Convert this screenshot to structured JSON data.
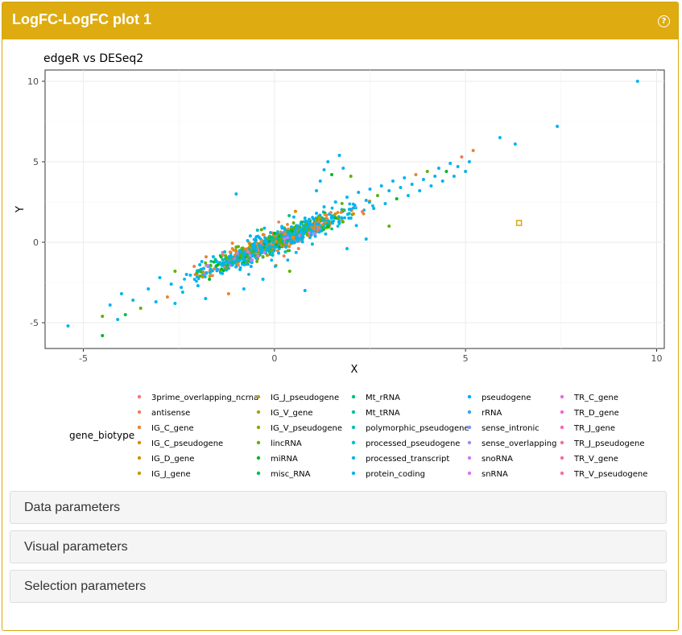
{
  "panel": {
    "title": "LogFC-LogFC plot 1"
  },
  "accordions": [
    "Data parameters",
    "Visual parameters",
    "Selection parameters"
  ],
  "colors": {
    "header": "#deac10",
    "selected_point": "#d4a810"
  },
  "chart_data": {
    "type": "scatter",
    "title": "edgeR vs DESeq2",
    "xlabel": "X",
    "ylabel": "Y",
    "xlim": [
      -6,
      10.2
    ],
    "ylim": [
      -6.6,
      10.7
    ],
    "xticks": [
      -5,
      0,
      5,
      10
    ],
    "yticks": [
      -5,
      0,
      5,
      10
    ],
    "grid": true,
    "legend": {
      "title": "gene_biotype",
      "placement": "bottom"
    },
    "series": [
      {
        "name": "3prime_overlapping_ncrna",
        "color": "#F8766D"
      },
      {
        "name": "antisense",
        "color": "#F27D52"
      },
      {
        "name": "IG_C_gene",
        "color": "#EA8331"
      },
      {
        "name": "IG_C_pseudogene",
        "color": "#E18A00"
      },
      {
        "name": "IG_D_gene",
        "color": "#D69100"
      },
      {
        "name": "IG_J_gene",
        "color": "#C99800"
      },
      {
        "name": "IG_J_pseudogene",
        "color": "#BB9D00"
      },
      {
        "name": "IG_V_gene",
        "color": "#A3A500"
      },
      {
        "name": "IG_V_pseudogene",
        "color": "#86AC00"
      },
      {
        "name": "lincRNA",
        "color": "#5BB300"
      },
      {
        "name": "miRNA",
        "color": "#00B81F"
      },
      {
        "name": "misc_RNA",
        "color": "#00BC56"
      },
      {
        "name": "Mt_rRNA",
        "color": "#00BF7D"
      },
      {
        "name": "Mt_tRNA",
        "color": "#00C19C"
      },
      {
        "name": "polymorphic_pseudogene",
        "color": "#00C0B8"
      },
      {
        "name": "processed_pseudogene",
        "color": "#00BDD0"
      },
      {
        "name": "processed_transcript",
        "color": "#00B8E5"
      },
      {
        "name": "protein_coding",
        "color": "#00B4F0"
      },
      {
        "name": "pseudogene",
        "color": "#00ACFC"
      },
      {
        "name": "rRNA",
        "color": "#35A2FF"
      },
      {
        "name": "sense_intronic",
        "color": "#7997FF"
      },
      {
        "name": "sense_overlapping",
        "color": "#A58AFF"
      },
      {
        "name": "snoRNA",
        "color": "#C77CFF"
      },
      {
        "name": "snRNA",
        "color": "#DF70F8"
      },
      {
        "name": "TR_C_gene",
        "color": "#EF67EB"
      },
      {
        "name": "TR_D_gene",
        "color": "#FB61D7"
      },
      {
        "name": "TR_J_gene",
        "color": "#FF62BC"
      },
      {
        "name": "TR_J_pseudogene",
        "color": "#FF689E"
      },
      {
        "name": "TR_V_gene",
        "color": "#FF6C91"
      },
      {
        "name": "TR_V_pseudogene",
        "color": "#FF6A98"
      }
    ],
    "points": [
      [
        -5.4,
        -5.2,
        17
      ],
      [
        -4.5,
        -5.8,
        10
      ],
      [
        -4.5,
        -4.6,
        9
      ],
      [
        -4.3,
        -3.9,
        17
      ],
      [
        -4.1,
        -4.8,
        17
      ],
      [
        -4.0,
        -3.2,
        17
      ],
      [
        -3.9,
        -4.5,
        11
      ],
      [
        -3.7,
        -3.6,
        17
      ],
      [
        -3.5,
        -4.1,
        9
      ],
      [
        -3.3,
        -2.9,
        17
      ],
      [
        -3.1,
        -3.7,
        17
      ],
      [
        -3.0,
        -2.2,
        17
      ],
      [
        -2.8,
        -3.4,
        2
      ],
      [
        -2.7,
        -2.6,
        17
      ],
      [
        -2.6,
        -1.8,
        9
      ],
      [
        -2.4,
        -3.1,
        17
      ],
      [
        -2.3,
        -2.0,
        17
      ],
      [
        -2.1,
        -1.5,
        1
      ],
      [
        -2.0,
        -2.7,
        17
      ],
      [
        -1.9,
        -1.2,
        17
      ],
      [
        -1.7,
        -2.3,
        10
      ],
      [
        -1.6,
        -0.9,
        17
      ],
      [
        -1.4,
        -1.9,
        17
      ],
      [
        -1.3,
        -0.6,
        14
      ],
      [
        -1.1,
        -1.4,
        17
      ],
      [
        -1.0,
        -0.3,
        9
      ],
      [
        -0.9,
        -1.7,
        17
      ],
      [
        -0.8,
        -0.8,
        17
      ],
      [
        -0.7,
        0.1,
        17
      ],
      [
        -0.6,
        -1.1,
        22
      ],
      [
        -0.5,
        -0.4,
        17
      ],
      [
        -0.4,
        0.3,
        17
      ],
      [
        -0.3,
        -0.9,
        9
      ],
      [
        -0.2,
        -0.1,
        17
      ],
      [
        -0.1,
        0.6,
        17
      ],
      [
        0.0,
        -0.5,
        17
      ],
      [
        0.1,
        0.2,
        12
      ],
      [
        0.2,
        0.9,
        17
      ],
      [
        0.3,
        -0.3,
        17
      ],
      [
        0.4,
        0.5,
        17
      ],
      [
        0.5,
        1.2,
        9
      ],
      [
        0.6,
        0.1,
        17
      ],
      [
        0.7,
        0.8,
        17
      ],
      [
        0.8,
        1.5,
        17
      ],
      [
        0.9,
        0.4,
        2
      ],
      [
        1.0,
        1.1,
        17
      ],
      [
        1.1,
        1.8,
        17
      ],
      [
        1.2,
        0.7,
        17
      ],
      [
        1.3,
        2.2,
        17
      ],
      [
        1.4,
        1.0,
        10
      ],
      [
        1.5,
        1.6,
        17
      ],
      [
        1.6,
        2.5,
        17
      ],
      [
        1.7,
        1.3,
        17
      ],
      [
        1.8,
        2.0,
        9
      ],
      [
        1.9,
        2.8,
        17
      ],
      [
        2.0,
        1.5,
        17
      ],
      [
        2.1,
        2.3,
        17
      ],
      [
        2.2,
        3.1,
        17
      ],
      [
        2.3,
        1.9,
        1
      ],
      [
        2.4,
        2.6,
        17
      ],
      [
        2.5,
        3.3,
        17
      ],
      [
        2.6,
        2.1,
        17
      ],
      [
        2.7,
        2.9,
        9
      ],
      [
        2.8,
        3.5,
        17
      ],
      [
        2.9,
        2.4,
        17
      ],
      [
        3.0,
        3.2,
        17
      ],
      [
        3.1,
        3.8,
        17
      ],
      [
        3.2,
        2.7,
        10
      ],
      [
        3.3,
        3.4,
        17
      ],
      [
        3.4,
        4.0,
        17
      ],
      [
        3.5,
        2.9,
        17
      ],
      [
        3.6,
        3.6,
        17
      ],
      [
        3.7,
        4.2,
        2
      ],
      [
        3.8,
        3.2,
        17
      ],
      [
        3.9,
        3.9,
        17
      ],
      [
        4.0,
        4.4,
        9
      ],
      [
        4.1,
        3.5,
        17
      ],
      [
        4.2,
        4.1,
        17
      ],
      [
        4.3,
        4.6,
        17
      ],
      [
        4.4,
        3.8,
        17
      ],
      [
        4.5,
        4.4,
        10
      ],
      [
        4.6,
        4.9,
        17
      ],
      [
        4.7,
        4.1,
        17
      ],
      [
        4.8,
        4.7,
        17
      ],
      [
        4.9,
        5.3,
        1
      ],
      [
        5.0,
        4.4,
        17
      ],
      [
        5.1,
        5.0,
        17
      ],
      [
        5.2,
        5.7,
        2
      ],
      [
        5.9,
        6.5,
        17
      ],
      [
        6.3,
        6.1,
        17
      ],
      [
        7.4,
        7.2,
        17
      ],
      [
        9.5,
        10.0,
        17
      ],
      [
        1.2,
        3.8,
        17
      ],
      [
        1.3,
        4.5,
        17
      ],
      [
        1.4,
        5.0,
        17
      ],
      [
        1.5,
        4.2,
        10
      ],
      [
        1.1,
        3.2,
        17
      ],
      [
        1.7,
        5.4,
        17
      ],
      [
        1.8,
        4.6,
        17
      ],
      [
        2.0,
        4.1,
        9
      ],
      [
        -1.0,
        3.0,
        17
      ],
      [
        0.8,
        -3.0,
        17
      ],
      [
        0.4,
        -1.8,
        9
      ],
      [
        -0.3,
        -2.3,
        17
      ],
      [
        -0.8,
        -2.9,
        17
      ],
      [
        -1.2,
        -3.2,
        2
      ],
      [
        1.9,
        -0.4,
        17
      ],
      [
        2.4,
        0.2,
        17
      ],
      [
        3.0,
        1.0,
        9
      ],
      [
        -2.6,
        -3.8,
        17
      ],
      [
        -1.8,
        -3.5,
        17
      ]
    ],
    "selected": {
      "x": 6.4,
      "y": 1.2
    }
  }
}
